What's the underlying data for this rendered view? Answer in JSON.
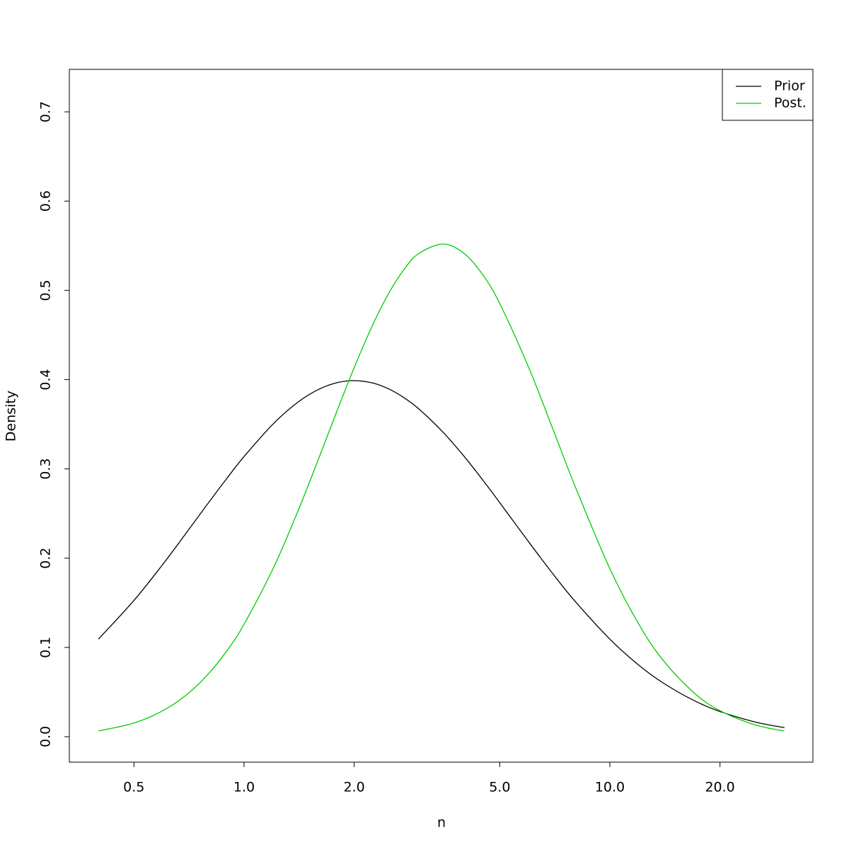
{
  "chart_data": {
    "type": "line",
    "x_label": "n",
    "y_label": "Density",
    "log_x": true,
    "x": [
      0.4,
      0.5,
      0.6,
      0.7,
      0.8,
      0.9,
      1.0,
      1.2,
      1.4,
      1.6,
      1.8,
      2.0,
      2.25,
      2.5,
      2.75,
      3.0,
      3.5,
      4.0,
      4.5,
      5,
      6,
      7,
      8,
      10,
      12,
      14,
      17,
      20,
      25,
      30
    ],
    "series": [
      {
        "name": "Prior",
        "color": "#000000",
        "values": [
          0.1093,
          0.1526,
          0.1932,
          0.2299,
          0.2622,
          0.29,
          0.3138,
          0.3502,
          0.3744,
          0.3891,
          0.3967,
          0.3989,
          0.3962,
          0.3891,
          0.3792,
          0.3675,
          0.3411,
          0.3138,
          0.2872,
          0.2622,
          0.2182,
          0.182,
          0.1526,
          0.1093,
          0.0801,
          0.0601,
          0.0404,
          0.0282,
          0.0164,
          0.0102
        ]
      },
      {
        "name": "Post.",
        "color": "#00cd00",
        "values": [
          0.0064,
          0.0153,
          0.0291,
          0.0477,
          0.0706,
          0.0969,
          0.1259,
          0.1881,
          0.2515,
          0.3117,
          0.3661,
          0.4134,
          0.4617,
          0.4985,
          0.5245,
          0.5411,
          0.5519,
          0.5412,
          0.5171,
          0.4853,
          0.4136,
          0.3438,
          0.2824,
          0.1883,
          0.126,
          0.0853,
          0.049,
          0.0291,
          0.0131,
          0.0064
        ]
      }
    ],
    "xlim": [
      0.333,
      35.9
    ],
    "xticks": [
      0.5,
      {
        "value": 1,
        "label": "1.0"
      },
      {
        "value": 2,
        "label": "2.0"
      },
      {
        "value": 5,
        "label": "5.0"
      },
      {
        "value": 10,
        "label": "10.0"
      },
      {
        "value": 20,
        "label": "20.0"
      }
    ],
    "ylim": [
      -0.0285,
      0.7476
    ],
    "yticks": [
      {
        "value": 0,
        "label": "0.0"
      },
      0.1,
      0.2,
      0.3,
      0.4,
      0.5,
      0.6,
      0.7
    ],
    "legend": "top-right"
  }
}
